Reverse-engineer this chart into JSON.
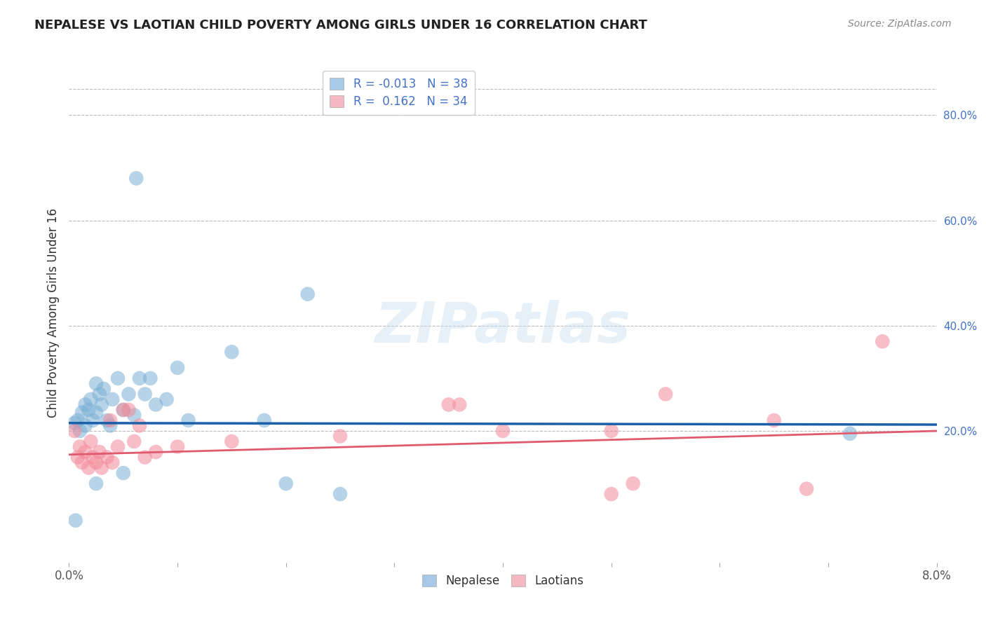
{
  "title": "NEPALESE VS LAOTIAN CHILD POVERTY AMONG GIRLS UNDER 16 CORRELATION CHART",
  "source": "Source: ZipAtlas.com",
  "ylabel": "Child Poverty Among Girls Under 16",
  "xlim": [
    0.0,
    8.0
  ],
  "ylim": [
    -5.0,
    90.0
  ],
  "yticks_right": [
    20.0,
    40.0,
    60.0,
    80.0
  ],
  "legend_label_nepalese": "Nepalese",
  "legend_label_laotians": "Laotians",
  "nepalese_color": "#7bafd4",
  "laotians_color": "#f48a9a",
  "nepalese_trend_color": "#1a5fa8",
  "laotians_trend_color": "#e05a6e",
  "neo_label": "R = -0.013   N = 38",
  "lao_label": "R =  0.162   N = 34",
  "neo_patch_color": "#a8c8e8",
  "lao_patch_color": "#f4b8c1",
  "nepalese_points": [
    [
      0.05,
      21.5
    ],
    [
      0.08,
      22.0
    ],
    [
      0.1,
      20.0
    ],
    [
      0.12,
      23.5
    ],
    [
      0.15,
      25.0
    ],
    [
      0.15,
      21.0
    ],
    [
      0.18,
      24.0
    ],
    [
      0.2,
      26.0
    ],
    [
      0.22,
      22.0
    ],
    [
      0.25,
      29.0
    ],
    [
      0.25,
      23.5
    ],
    [
      0.28,
      27.0
    ],
    [
      0.3,
      25.0
    ],
    [
      0.32,
      28.0
    ],
    [
      0.35,
      22.0
    ],
    [
      0.38,
      21.0
    ],
    [
      0.4,
      26.0
    ],
    [
      0.45,
      30.0
    ],
    [
      0.5,
      24.0
    ],
    [
      0.55,
      27.0
    ],
    [
      0.6,
      23.0
    ],
    [
      0.65,
      30.0
    ],
    [
      0.7,
      27.0
    ],
    [
      0.75,
      30.0
    ],
    [
      0.8,
      25.0
    ],
    [
      0.9,
      26.0
    ],
    [
      1.0,
      32.0
    ],
    [
      1.1,
      22.0
    ],
    [
      1.5,
      35.0
    ],
    [
      1.8,
      22.0
    ],
    [
      2.2,
      46.0
    ],
    [
      0.06,
      3.0
    ],
    [
      0.25,
      10.0
    ],
    [
      0.5,
      12.0
    ],
    [
      2.5,
      8.0
    ],
    [
      2.0,
      10.0
    ],
    [
      7.2,
      19.5
    ],
    [
      0.62,
      68.0
    ]
  ],
  "laotians_points": [
    [
      0.05,
      20.0
    ],
    [
      0.08,
      15.0
    ],
    [
      0.1,
      17.0
    ],
    [
      0.12,
      14.0
    ],
    [
      0.15,
      16.0
    ],
    [
      0.18,
      13.0
    ],
    [
      0.2,
      18.0
    ],
    [
      0.22,
      15.0
    ],
    [
      0.25,
      14.0
    ],
    [
      0.28,
      16.0
    ],
    [
      0.3,
      13.0
    ],
    [
      0.35,
      15.0
    ],
    [
      0.38,
      22.0
    ],
    [
      0.4,
      14.0
    ],
    [
      0.45,
      17.0
    ],
    [
      0.5,
      24.0
    ],
    [
      0.55,
      24.0
    ],
    [
      0.6,
      18.0
    ],
    [
      0.65,
      21.0
    ],
    [
      0.7,
      15.0
    ],
    [
      0.8,
      16.0
    ],
    [
      1.0,
      17.0
    ],
    [
      1.5,
      18.0
    ],
    [
      2.5,
      19.0
    ],
    [
      3.5,
      25.0
    ],
    [
      3.6,
      25.0
    ],
    [
      4.0,
      20.0
    ],
    [
      5.0,
      20.0
    ],
    [
      5.0,
      8.0
    ],
    [
      5.2,
      10.0
    ],
    [
      5.5,
      27.0
    ],
    [
      6.5,
      22.0
    ],
    [
      6.8,
      9.0
    ],
    [
      7.5,
      37.0
    ]
  ],
  "neo_trend_y0": 21.5,
  "neo_trend_y1": 21.2,
  "lao_trend_y0": 15.5,
  "lao_trend_y1": 20.0,
  "watermark": "ZIPatlas",
  "background_color": "#ffffff",
  "grid_color": "#bbbbbb",
  "grid_style": "--"
}
